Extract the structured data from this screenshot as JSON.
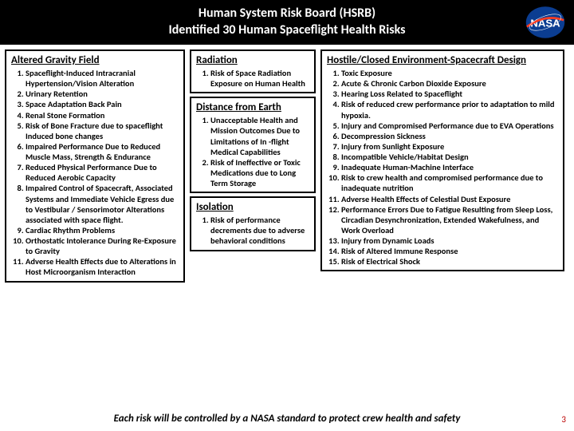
{
  "header": {
    "line1": "Human System Risk Board (HSRB)",
    "line2": "Identified 30 Human Spaceflight Health Risks"
  },
  "columns": {
    "col1": {
      "title": "Altered Gravity Field",
      "items": [
        "Spaceflight-Induced Intracranial Hypertension/Vision Alteration",
        "Urinary Retention",
        "Space Adaptation Back Pain",
        "Renal Stone Formation",
        "Risk of Bone Fracture due to spaceflight Induced bone changes",
        "Impaired Performance Due to Reduced Muscle Mass, Strength & Endurance",
        "Reduced Physical Performance Due to Reduced Aerobic Capacity",
        "Impaired Control of Spacecraft, Associated Systems and Immediate Vehicle Egress due to Vestibular / Sensorimotor Alterations associated with space flight.",
        "Cardiac Rhythm Problems",
        "Orthostatic Intolerance During Re-Exposure to Gravity",
        "Adverse Health Effects due to Alterations in Host Microorganism Interaction"
      ]
    },
    "col2a": {
      "title": "Radiation",
      "items": [
        "Risk of Space Radiation Exposure on Human Health"
      ]
    },
    "col2b": {
      "title": "Distance from Earth",
      "items": [
        "Unacceptable Health and Mission Outcomes Due to Limitations of In -flight Medical Capabilities",
        "Risk of Ineffective or Toxic Medications due to Long Term Storage"
      ]
    },
    "col2c": {
      "title": "Isolation",
      "items": [
        "Risk of performance decrements due to adverse behavioral conditions"
      ]
    },
    "col3": {
      "title": "Hostile/Closed Environment-Spacecraft Design",
      "items": [
        "Toxic Exposure",
        "Acute & Chronic Carbon Dioxide Exposure",
        "Hearing Loss Related to Spaceflight",
        "Risk of reduced crew performance prior to adaptation to mild hypoxia.",
        "Injury and Compromised Performance due to EVA Operations",
        "Decompression Sickness",
        "Injury from Sunlight Exposure",
        "Incompatible Vehicle/Habitat Design",
        "Inadequate Human-Machine Interface",
        "Risk to crew health and compromised performance due to inadequate nutrition",
        "Adverse Health Effects of Celestial Dust Exposure",
        "Performance Errors Due to Fatigue Resulting from Sleep Loss, Circadian Desynchronization, Extended Wakefulness, and Work Overload",
        "Injury from Dynamic Loads",
        "Risk of Altered Immune Response",
        "Risk of Electrical Shock"
      ]
    }
  },
  "footer": "Each risk will be controlled by a NASA standard to protect crew health and safety",
  "page_number": "3",
  "logo_colors": {
    "bg": "#0b3d91",
    "swoosh": "#fc3d21",
    "text": "#ffffff"
  }
}
